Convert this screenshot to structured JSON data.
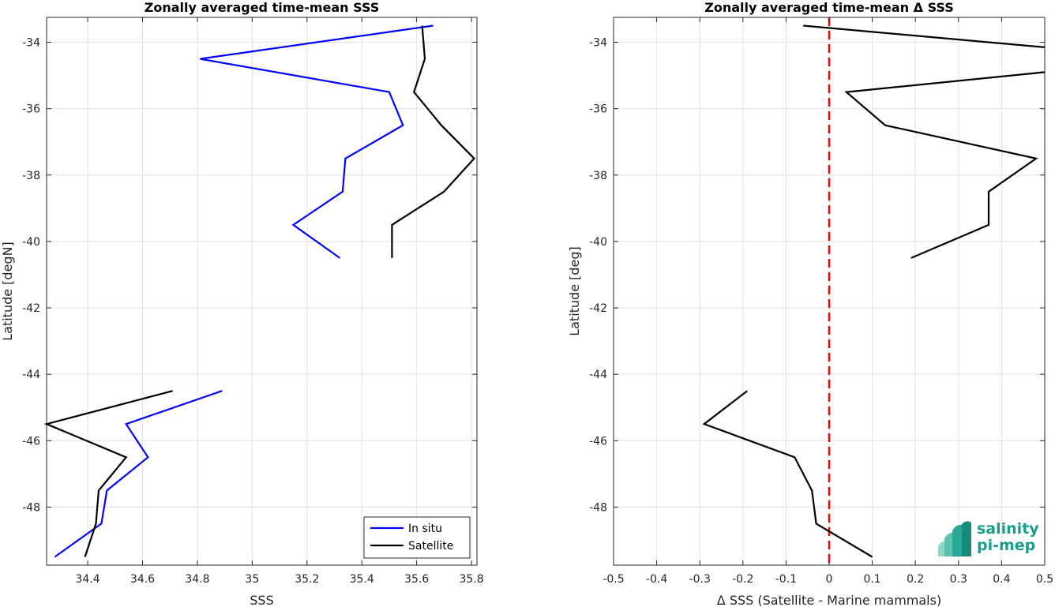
{
  "chart_data": [
    {
      "type": "line",
      "title": "Zonally averaged time-mean SSS",
      "xlabel": "SSS",
      "ylabel": "Latitude [degN]",
      "xlim": [
        34.25,
        35.82
      ],
      "ylim": [
        -49.75,
        -33.25
      ],
      "xticks": [
        34.4,
        34.6,
        34.8,
        35.0,
        35.2,
        35.4,
        35.6,
        35.8
      ],
      "xtick_labels": [
        "34.4",
        "34.6",
        "34.8",
        "35",
        "35.2",
        "35.4",
        "35.6",
        "35.8"
      ],
      "yticks": [
        -34,
        -36,
        -38,
        -40,
        -42,
        -44,
        -46,
        -48
      ],
      "ytick_labels": [
        "-34",
        "-36",
        "-38",
        "-40",
        "-42",
        "-44",
        "-46",
        "-48"
      ],
      "grid": true,
      "legend_position": "bottom-right",
      "series": [
        {
          "name": "In situ",
          "color": "#0000ff",
          "segments": [
            [
              [
                35.66,
                -33.5
              ],
              [
                34.81,
                -34.5
              ],
              [
                35.5,
                -35.5
              ],
              [
                35.55,
                -36.5
              ],
              [
                35.34,
                -37.5
              ],
              [
                35.33,
                -38.5
              ],
              [
                35.15,
                -39.5
              ],
              [
                35.32,
                -40.5
              ]
            ],
            [
              [
                34.89,
                -44.5
              ],
              [
                34.54,
                -45.5
              ],
              [
                34.62,
                -46.5
              ],
              [
                34.47,
                -47.5
              ],
              [
                34.45,
                -48.5
              ],
              [
                34.28,
                -49.5
              ]
            ]
          ]
        },
        {
          "name": "Satellite",
          "color": "#000000",
          "segments": [
            [
              [
                35.62,
                -33.5
              ],
              [
                35.63,
                -34.5
              ],
              [
                35.59,
                -35.5
              ],
              [
                35.69,
                -36.5
              ],
              [
                35.81,
                -37.5
              ],
              [
                35.7,
                -38.5
              ],
              [
                35.51,
                -39.5
              ],
              [
                35.51,
                -40.5
              ]
            ],
            [
              [
                34.71,
                -44.5
              ],
              [
                34.25,
                -45.5
              ],
              [
                34.54,
                -46.5
              ],
              [
                34.44,
                -47.5
              ],
              [
                34.43,
                -48.5
              ],
              [
                34.39,
                -49.5
              ]
            ]
          ]
        }
      ]
    },
    {
      "type": "line",
      "title": "Zonally averaged time-mean Δ SSS",
      "xlabel": "Δ SSS (Satellite - Marine mammals)",
      "ylabel": "Latitude [deg]",
      "xlim": [
        -0.5,
        0.5
      ],
      "ylim": [
        -49.75,
        -33.25
      ],
      "xticks": [
        -0.5,
        -0.4,
        -0.3,
        -0.2,
        -0.1,
        0,
        0.1,
        0.2,
        0.3,
        0.4,
        0.5
      ],
      "xtick_labels": [
        "-0.5",
        "-0.4",
        "-0.3",
        "-0.2",
        "-0.1",
        "0",
        "0.1",
        "0.2",
        "0.3",
        "0.4",
        "0.5"
      ],
      "yticks": [
        -34,
        -36,
        -38,
        -40,
        -42,
        -44,
        -46,
        -48
      ],
      "ytick_labels": [
        "-34",
        "-36",
        "-38",
        "-40",
        "-42",
        "-44",
        "-46",
        "-48"
      ],
      "grid": true,
      "reference_line": {
        "x": 0,
        "color": "#ff0000",
        "style": "dashed"
      },
      "series": [
        {
          "color": "#000000",
          "segments": [
            [
              [
                -0.06,
                -33.5
              ],
              [
                0.5,
                -34.15
              ]
            ],
            [
              [
                0.5,
                -34.9
              ],
              [
                0.04,
                -35.5
              ],
              [
                0.13,
                -36.5
              ],
              [
                0.48,
                -37.5
              ],
              [
                0.37,
                -38.5
              ],
              [
                0.37,
                -39.5
              ],
              [
                0.19,
                -40.5
              ]
            ],
            [
              [
                -0.19,
                -44.5
              ],
              [
                -0.29,
                -45.5
              ],
              [
                -0.08,
                -46.5
              ],
              [
                -0.04,
                -47.5
              ],
              [
                -0.03,
                -48.5
              ],
              [
                0.1,
                -49.5
              ]
            ]
          ]
        }
      ]
    }
  ],
  "logo": {
    "line1": "salinity",
    "line2": "pi-mep",
    "color": "#1a9e8c"
  }
}
